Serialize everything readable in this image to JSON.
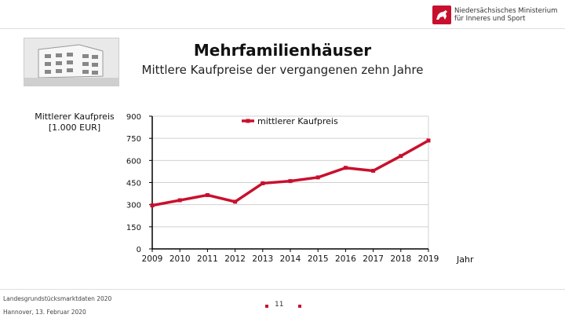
{
  "header": {
    "ministry_line1": "Niedersächsisches Ministerium",
    "ministry_line2": "für Inneres und Sport",
    "emblem_icon": "niedersachsen-horse-icon"
  },
  "slide": {
    "title": "Mehrfamilienhäuser",
    "subtitle": "Mittlere Kaufpreise der vergangenen zehn Jahre"
  },
  "footer": {
    "source": "Landesgrundstücksmarktdaten 2020",
    "place_date": "Hannover, 13. Februar 2020",
    "page": "11"
  },
  "colors": {
    "accent": "#c8102e",
    "axis": "#000000",
    "grid": "#d0d0d0"
  },
  "chart_data": {
    "type": "line",
    "ylabel_line1": "Mittlerer Kaufpreis",
    "ylabel_line2": "[1.000 EUR]",
    "xlabel": "Jahr",
    "x": [
      "2009",
      "2010",
      "2011",
      "2012",
      "2013",
      "2014",
      "2015",
      "2016",
      "2017",
      "2018",
      "2019"
    ],
    "ylim": [
      0,
      900
    ],
    "yticks": [
      0,
      150,
      300,
      450,
      600,
      750,
      900
    ],
    "grid": true,
    "legend_position": "top-center",
    "series": [
      {
        "name": "mittlerer Kaufpreis",
        "values": [
          295,
          330,
          365,
          320,
          445,
          460,
          485,
          550,
          530,
          630,
          735
        ]
      }
    ]
  }
}
